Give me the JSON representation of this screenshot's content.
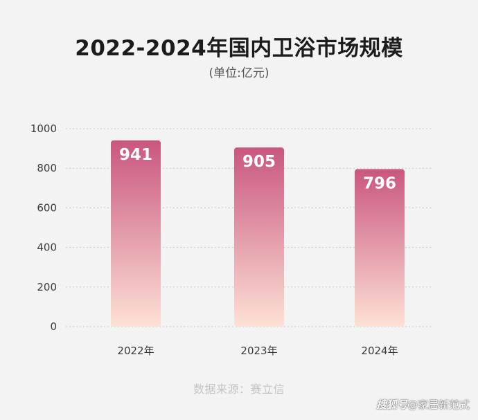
{
  "chart_data": {
    "type": "bar",
    "title": "2022-2024年国内卫浴市场规模",
    "subtitle": "(单位:亿元)",
    "categories": [
      "2022年",
      "2023年",
      "2024年"
    ],
    "values": [
      941,
      905,
      796
    ],
    "data_labels": [
      "941",
      "905",
      "796"
    ],
    "ylim": [
      0,
      1000
    ],
    "yticks": [
      0,
      200,
      400,
      600,
      800,
      1000
    ],
    "ytick_labels": [
      "0",
      "200",
      "400",
      "600",
      "800",
      "1000"
    ],
    "grid": true,
    "grid_style": "dotted",
    "legend": "none",
    "bar_gradient": {
      "top": "#c9567f",
      "bottom": "#fde1d5"
    }
  },
  "source_note": "数据来源：赛立信",
  "watermark": {
    "logo": "搜狐号",
    "text": "@家居新范式"
  },
  "colors": {
    "background": "#f3f3f3",
    "title": "#1c1c1c",
    "grid": "#c8c8c8",
    "axis_text": "#3a3a3a",
    "source_text": "#c4c4c4"
  }
}
